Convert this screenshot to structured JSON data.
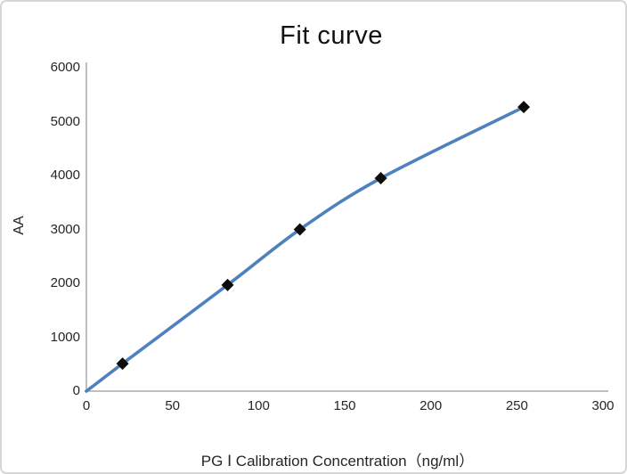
{
  "chart_data": {
    "type": "line",
    "title": "Fit curve",
    "xlabel": "PG Ⅰ Calibration Concentration（ng/ml）",
    "ylabel": "AA",
    "xlim": [
      0,
      300
    ],
    "ylim": [
      0,
      6000
    ],
    "xticks": [
      0,
      50,
      100,
      150,
      200,
      250,
      300
    ],
    "yticks": [
      0,
      1000,
      2000,
      3000,
      4000,
      5000,
      6000
    ],
    "grid": false,
    "legend": false,
    "line_color": "#4F81BD",
    "marker_color": "#0d0d0d",
    "marker_shape": "diamond",
    "axis_color": "#BFBFBF",
    "points": [
      {
        "x": 0,
        "y": 0,
        "marker": false
      },
      {
        "x": 21,
        "y": 510,
        "marker": true
      },
      {
        "x": 82,
        "y": 1970,
        "marker": true
      },
      {
        "x": 124,
        "y": 3000,
        "marker": true
      },
      {
        "x": 171,
        "y": 3950,
        "marker": true
      },
      {
        "x": 254,
        "y": 5270,
        "marker": true
      }
    ]
  }
}
